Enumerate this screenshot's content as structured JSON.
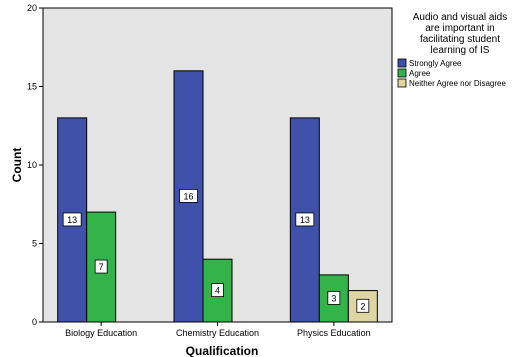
{
  "chart_data": {
    "type": "bar",
    "categories": [
      "Biology Education",
      "Chemistry Education",
      "Physics Education"
    ],
    "series": [
      {
        "name": "Strongly Agree",
        "color": "#3f51a8",
        "values": [
          13,
          16,
          13
        ]
      },
      {
        "name": "Agree",
        "color": "#34b34a",
        "values": [
          7,
          4,
          3
        ]
      },
      {
        "name": "Neither Agree nor Disagree",
        "color": "#ddd5a2",
        "values": [
          0,
          0,
          2
        ]
      }
    ],
    "xlabel": "Qualification",
    "ylabel": "Count",
    "ylim": [
      0,
      20
    ],
    "yticks": [
      0,
      5,
      10,
      15,
      20
    ],
    "legend": {
      "title_lines": [
        "Audio and visual aids",
        "are important in",
        "facilitating student",
        "learning of IS"
      ],
      "position": "right"
    },
    "plot_background": "#e4e4e4",
    "grid": false
  }
}
